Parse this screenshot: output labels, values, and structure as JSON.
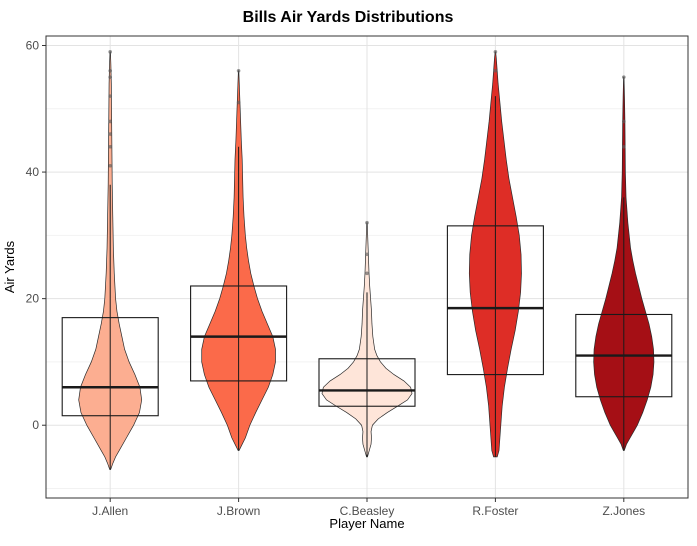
{
  "title": "Bills Air Yards Distributions",
  "axes": {
    "x_label": "Player Name",
    "y_label": "Air Yards"
  },
  "style": {
    "panel_bg": "#FFFFFF",
    "grid_major": "#E3E3E3",
    "grid_minor": "#F2F2F2",
    "panel_border": "#333333",
    "tick_color": "#333333",
    "tick_label_color": "#4D4D4D",
    "violin_stroke": "#2A2A2A",
    "box_stroke": "#1A1A1A",
    "outlier_color": "#5A5A5A"
  },
  "chart_data": {
    "type": "violin",
    "title": "Bills Air Yards Distributions",
    "xlabel": "Player Name",
    "ylabel": "Air Yards",
    "ylim": [
      -11.5,
      61.5
    ],
    "yticks": [
      0,
      20,
      40,
      60
    ],
    "yticks_minor": [
      -10,
      10,
      30,
      50
    ],
    "grid": true,
    "legend": "none",
    "categories": [
      "J.Allen",
      "J.Brown",
      "C.Beasley",
      "R.Foster",
      "Z.Jones"
    ],
    "series": [
      {
        "name": "J.Allen",
        "fill": "#FCAE91",
        "box": {
          "q1": 1.5,
          "median": 6,
          "q3": 17,
          "whisker_low": -7,
          "whisker_high": 38
        },
        "outliers": [
          41,
          44,
          46,
          48,
          52,
          55,
          56,
          59
        ],
        "density": [
          [
            -7,
            0.01
          ],
          [
            -6,
            0.06
          ],
          [
            -5,
            0.12
          ],
          [
            -4,
            0.2
          ],
          [
            -2,
            0.36
          ],
          [
            0,
            0.52
          ],
          [
            2,
            0.65
          ],
          [
            4,
            0.7
          ],
          [
            6,
            0.66
          ],
          [
            8,
            0.55
          ],
          [
            10,
            0.42
          ],
          [
            12,
            0.32
          ],
          [
            14,
            0.26
          ],
          [
            16,
            0.2
          ],
          [
            18,
            0.15
          ],
          [
            20,
            0.12
          ],
          [
            24,
            0.09
          ],
          [
            28,
            0.07
          ],
          [
            32,
            0.06
          ],
          [
            36,
            0.05
          ],
          [
            38,
            0.045
          ],
          [
            42,
            0.04
          ],
          [
            46,
            0.035
          ],
          [
            50,
            0.03
          ],
          [
            54,
            0.025
          ],
          [
            57,
            0.015
          ],
          [
            59,
            0.005
          ]
        ]
      },
      {
        "name": "J.Brown",
        "fill": "#FB6A4A",
        "box": {
          "q1": 7,
          "median": 14,
          "q3": 22,
          "whisker_low": -4,
          "whisker_high": 44
        },
        "outliers": [
          51,
          56
        ],
        "density": [
          [
            -4,
            0.01
          ],
          [
            -3,
            0.08
          ],
          [
            -2,
            0.15
          ],
          [
            0,
            0.25
          ],
          [
            2,
            0.38
          ],
          [
            4,
            0.52
          ],
          [
            6,
            0.66
          ],
          [
            8,
            0.76
          ],
          [
            10,
            0.82
          ],
          [
            12,
            0.82
          ],
          [
            14,
            0.76
          ],
          [
            16,
            0.64
          ],
          [
            18,
            0.52
          ],
          [
            20,
            0.42
          ],
          [
            22,
            0.34
          ],
          [
            24,
            0.27
          ],
          [
            26,
            0.22
          ],
          [
            28,
            0.18
          ],
          [
            30,
            0.15
          ],
          [
            33,
            0.12
          ],
          [
            36,
            0.1
          ],
          [
            39,
            0.09
          ],
          [
            42,
            0.08
          ],
          [
            45,
            0.06
          ],
          [
            48,
            0.045
          ],
          [
            51,
            0.03
          ],
          [
            54,
            0.015
          ],
          [
            56,
            0.005
          ]
        ]
      },
      {
        "name": "C.Beasley",
        "fill": "#FEE5D9",
        "box": {
          "q1": 3,
          "median": 5.5,
          "q3": 10.5,
          "whisker_low": -5,
          "whisker_high": 21
        },
        "outliers": [
          24,
          27,
          32
        ],
        "density": [
          [
            -5,
            0.01
          ],
          [
            -4,
            0.05
          ],
          [
            -3,
            0.09
          ],
          [
            -2,
            0.1
          ],
          [
            -1,
            0.09
          ],
          [
            0,
            0.12
          ],
          [
            1,
            0.25
          ],
          [
            2,
            0.45
          ],
          [
            3,
            0.68
          ],
          [
            4,
            0.9
          ],
          [
            5,
            1.0
          ],
          [
            6,
            0.97
          ],
          [
            7,
            0.82
          ],
          [
            8,
            0.6
          ],
          [
            9,
            0.42
          ],
          [
            10,
            0.3
          ],
          [
            11,
            0.22
          ],
          [
            12,
            0.17
          ],
          [
            14,
            0.13
          ],
          [
            16,
            0.11
          ],
          [
            18,
            0.1
          ],
          [
            20,
            0.08
          ],
          [
            22,
            0.06
          ],
          [
            24,
            0.045
          ],
          [
            26,
            0.035
          ],
          [
            28,
            0.025
          ],
          [
            30,
            0.015
          ],
          [
            32,
            0.005
          ]
        ]
      },
      {
        "name": "R.Foster",
        "fill": "#DE2D26",
        "box": {
          "q1": 8,
          "median": 18.5,
          "q3": 31.5,
          "whisker_low": -5,
          "whisker_high": 52
        },
        "outliers": [
          56,
          59
        ],
        "density": [
          [
            -5,
            0.04
          ],
          [
            -4,
            0.08
          ],
          [
            -2,
            0.1
          ],
          [
            0,
            0.12
          ],
          [
            3,
            0.15
          ],
          [
            6,
            0.2
          ],
          [
            9,
            0.27
          ],
          [
            12,
            0.35
          ],
          [
            15,
            0.44
          ],
          [
            18,
            0.51
          ],
          [
            21,
            0.56
          ],
          [
            24,
            0.58
          ],
          [
            27,
            0.57
          ],
          [
            30,
            0.53
          ],
          [
            33,
            0.46
          ],
          [
            36,
            0.38
          ],
          [
            39,
            0.3
          ],
          [
            42,
            0.24
          ],
          [
            45,
            0.19
          ],
          [
            48,
            0.14
          ],
          [
            51,
            0.1
          ],
          [
            54,
            0.06
          ],
          [
            56,
            0.04
          ],
          [
            58,
            0.02
          ],
          [
            59,
            0.005
          ]
        ]
      },
      {
        "name": "Z.Jones",
        "fill": "#A50F15",
        "box": {
          "q1": 4.5,
          "median": 11,
          "q3": 17.5,
          "whisker_low": -4,
          "whisker_high": 36
        },
        "outliers": [
          44,
          48,
          55
        ],
        "density": [
          [
            -4,
            0.01
          ],
          [
            -3,
            0.06
          ],
          [
            -2,
            0.14
          ],
          [
            -1,
            0.22
          ],
          [
            0,
            0.3
          ],
          [
            2,
            0.42
          ],
          [
            4,
            0.52
          ],
          [
            6,
            0.6
          ],
          [
            8,
            0.65
          ],
          [
            10,
            0.67
          ],
          [
            12,
            0.66
          ],
          [
            14,
            0.62
          ],
          [
            16,
            0.56
          ],
          [
            18,
            0.48
          ],
          [
            20,
            0.4
          ],
          [
            22,
            0.33
          ],
          [
            24,
            0.26
          ],
          [
            26,
            0.2
          ],
          [
            28,
            0.15
          ],
          [
            30,
            0.12
          ],
          [
            32,
            0.09
          ],
          [
            34,
            0.07
          ],
          [
            36,
            0.05
          ],
          [
            40,
            0.035
          ],
          [
            44,
            0.03
          ],
          [
            48,
            0.025
          ],
          [
            52,
            0.015
          ],
          [
            55,
            0.005
          ]
        ]
      }
    ]
  }
}
